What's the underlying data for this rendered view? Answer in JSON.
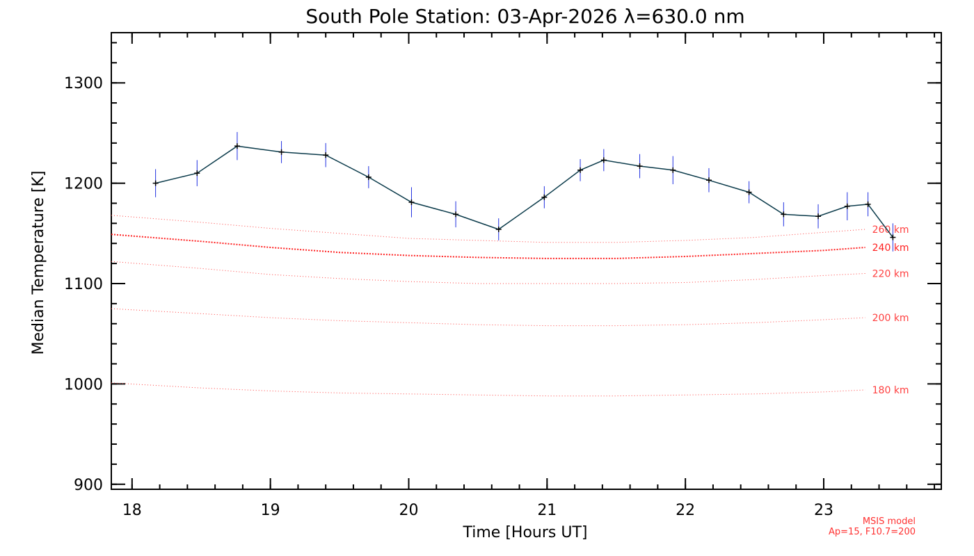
{
  "chart_data": {
    "type": "line",
    "title": "South Pole Station: 03-Apr-2026 λ=630.0 nm",
    "xlabel": "Time [Hours UT]",
    "ylabel": "Median Temperature [K]",
    "xlim": [
      17.85,
      23.85
    ],
    "ylim": [
      895,
      1350
    ],
    "x_ticks": [
      18,
      19,
      20,
      21,
      22,
      23
    ],
    "y_ticks": [
      900,
      1000,
      1100,
      1200,
      1300
    ],
    "x_minor_step": 0.2,
    "y_minor_step": 20,
    "series": [
      {
        "name": "Median Temperature",
        "color": "#000000",
        "line_color": "#0a3a4a",
        "error_color": "#1f2fe0",
        "x": [
          18.17,
          18.47,
          18.76,
          19.08,
          19.4,
          19.71,
          20.02,
          20.34,
          20.65,
          20.98,
          21.24,
          21.41,
          21.67,
          21.91,
          22.17,
          22.46,
          22.71,
          22.96,
          23.17,
          23.32,
          23.5
        ],
        "y": [
          1200,
          1210,
          1237,
          1231,
          1228,
          1206,
          1181,
          1169,
          1154,
          1186,
          1213,
          1223,
          1217,
          1213,
          1203,
          1191,
          1169,
          1167,
          1177,
          1179,
          1146
        ],
        "err": [
          14,
          13,
          14,
          11,
          12,
          11,
          15,
          13,
          11,
          11,
          11,
          11,
          12,
          14,
          12,
          11,
          12,
          12,
          14,
          12,
          14
        ]
      }
    ],
    "model_series": [
      {
        "name": "260 km",
        "label": "260 km",
        "color": "#ff4040",
        "style": "sparse-dotted",
        "x": [
          17.85,
          18.5,
          19.0,
          19.5,
          20.0,
          20.5,
          21.0,
          21.5,
          22.0,
          22.5,
          23.0,
          23.3
        ],
        "y": [
          1168,
          1161,
          1155,
          1150,
          1145,
          1143,
          1141,
          1141,
          1143,
          1146,
          1151,
          1154
        ]
      },
      {
        "name": "240 km",
        "label": "240 km",
        "color": "#ff2020",
        "style": "dense-dotted",
        "x": [
          17.85,
          18.5,
          19.0,
          19.5,
          20.0,
          20.5,
          21.0,
          21.5,
          22.0,
          22.5,
          23.0,
          23.3
        ],
        "y": [
          1149,
          1142,
          1136,
          1131,
          1128,
          1126,
          1125,
          1125,
          1127,
          1130,
          1133,
          1136
        ]
      },
      {
        "name": "220 km",
        "label": "220 km",
        "color": "#ff4040",
        "style": "sparse-dotted",
        "x": [
          17.85,
          18.5,
          19.0,
          19.5,
          20.0,
          20.5,
          21.0,
          21.5,
          22.0,
          22.5,
          23.0,
          23.3
        ],
        "y": [
          1122,
          1115,
          1109,
          1105,
          1102,
          1100,
          1100,
          1100,
          1101,
          1104,
          1108,
          1110
        ]
      },
      {
        "name": "200 km",
        "label": "200 km",
        "color": "#ff4040",
        "style": "sparse-dotted",
        "x": [
          17.85,
          18.5,
          19.0,
          19.5,
          20.0,
          20.5,
          21.0,
          21.5,
          22.0,
          22.5,
          23.0,
          23.3
        ],
        "y": [
          1075,
          1070,
          1066,
          1063,
          1061,
          1059,
          1058,
          1058,
          1059,
          1061,
          1064,
          1066
        ]
      },
      {
        "name": "180 km",
        "label": "180 km",
        "color": "#ff4040",
        "style": "sparse-dotted",
        "x": [
          17.85,
          18.5,
          19.0,
          19.5,
          20.0,
          20.5,
          21.0,
          21.5,
          22.0,
          22.5,
          23.0,
          23.3
        ],
        "y": [
          1001,
          996,
          993,
          991,
          990,
          989,
          988,
          988,
          989,
          990,
          992,
          994
        ]
      }
    ],
    "annotation": [
      "MSIS model",
      "Ap=15, F10.7=200"
    ],
    "annotation_color": "#ff3030"
  }
}
